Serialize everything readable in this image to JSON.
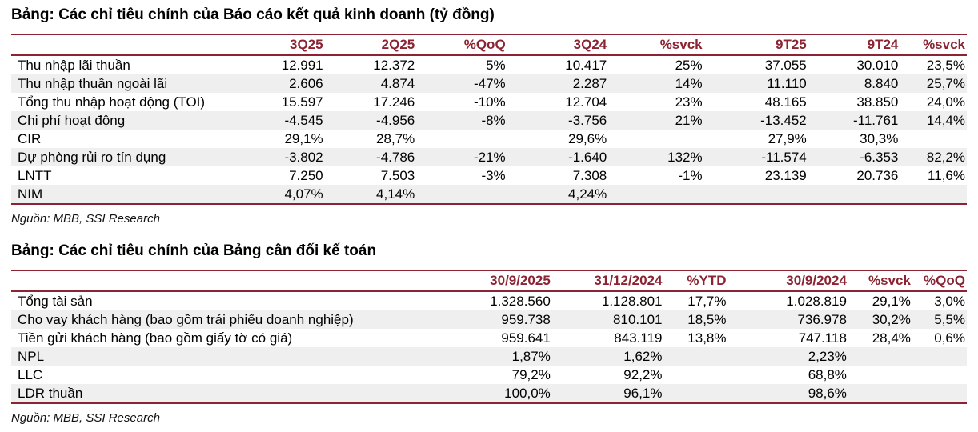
{
  "page": {
    "accent_color": "#8B2332",
    "row_alt_color": "#efefef"
  },
  "income_table": {
    "title": "Bảng: Các chỉ tiêu chính của Báo cáo kết quả kinh doanh (tỷ đồng)",
    "columns": [
      "",
      "3Q25",
      "2Q25",
      "%QoQ",
      "3Q24",
      "%svck",
      "9T25",
      "9T24",
      "%svck"
    ],
    "rows": [
      {
        "label": "Thu nhập lãi thuần",
        "values": [
          "12.991",
          "12.372",
          "5%",
          "10.417",
          "25%",
          "37.055",
          "30.010",
          "23,5%"
        ]
      },
      {
        "label": "Thu nhập thuần ngoài lãi",
        "values": [
          "2.606",
          "4.874",
          "-47%",
          "2.287",
          "14%",
          "11.110",
          "8.840",
          "25,7%"
        ]
      },
      {
        "label": "Tổng thu nhập hoạt động (TOI)",
        "values": [
          "15.597",
          "17.246",
          "-10%",
          "12.704",
          "23%",
          "48.165",
          "38.850",
          "24,0%"
        ]
      },
      {
        "label": "Chi phí hoạt động",
        "values": [
          "-4.545",
          "-4.956",
          "-8%",
          "-3.756",
          "21%",
          "-13.452",
          "-11.761",
          "14,4%"
        ]
      },
      {
        "label": "CIR",
        "values": [
          "29,1%",
          "28,7%",
          "",
          "29,6%",
          "",
          "27,9%",
          "30,3%",
          ""
        ]
      },
      {
        "label": "Dự phòng rủi ro tín dụng",
        "values": [
          "-3.802",
          "-4.786",
          "-21%",
          "-1.640",
          "132%",
          "-11.574",
          "-6.353",
          "82,2%"
        ]
      },
      {
        "label": "LNTT",
        "values": [
          "7.250",
          "7.503",
          "-3%",
          "7.308",
          "-1%",
          "23.139",
          "20.736",
          "11,6%"
        ]
      },
      {
        "label": "NIM",
        "values": [
          "4,07%",
          "4,14%",
          "",
          "4,24%",
          "",
          "",
          "",
          ""
        ]
      }
    ],
    "source": "Nguồn: MBB, SSI Research"
  },
  "balance_table": {
    "title": "Bảng: Các chỉ tiêu chính của Bảng cân đối kế toán",
    "columns": [
      "",
      "30/9/2025",
      "31/12/2024",
      "%YTD",
      "30/9/2024",
      "%svck",
      "%QoQ"
    ],
    "rows": [
      {
        "label": "Tổng tài sản",
        "values": [
          "1.328.560",
          "1.128.801",
          "17,7%",
          "1.028.819",
          "29,1%",
          "3,0%"
        ]
      },
      {
        "label": "Cho vay khách hàng (bao gồm trái phiếu doanh nghiệp)",
        "values": [
          "959.738",
          "810.101",
          "18,5%",
          "736.978",
          "30,2%",
          "5,5%"
        ]
      },
      {
        "label": "Tiền gửi khách hàng (bao gồm giấy tờ có giá)",
        "values": [
          "959.641",
          "843.119",
          "13,8%",
          "747.118",
          "28,4%",
          "0,6%"
        ]
      },
      {
        "label": "NPL",
        "values": [
          "1,87%",
          "1,62%",
          "",
          "2,23%",
          "",
          ""
        ]
      },
      {
        "label": "LLC",
        "values": [
          "79,2%",
          "92,2%",
          "",
          "68,8%",
          "",
          ""
        ]
      },
      {
        "label": "LDR thuần",
        "values": [
          "100,0%",
          "96,1%",
          "",
          "98,6%",
          "",
          ""
        ]
      }
    ],
    "source": "Nguồn: MBB, SSI Research"
  }
}
